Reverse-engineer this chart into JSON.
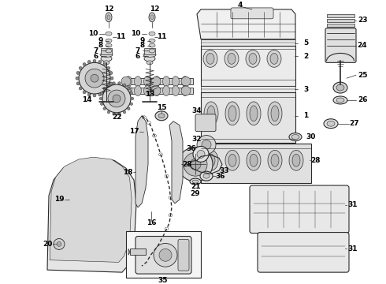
{
  "background_color": "#ffffff",
  "line_color": "#2a2a2a",
  "label_color": "#000000",
  "fig_w": 4.9,
  "fig_h": 3.6,
  "dpi": 100
}
